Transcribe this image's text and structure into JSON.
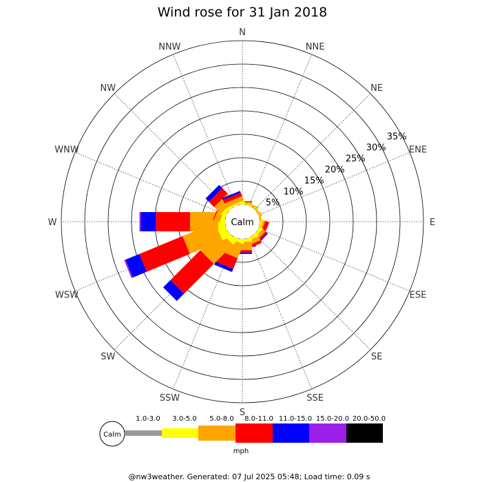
{
  "chart_data": {
    "type": "wind-rose",
    "title": "Wind rose for 31 Jan 2018",
    "directions": [
      "N",
      "NNE",
      "NE",
      "ENE",
      "E",
      "ESE",
      "SE",
      "SSE",
      "S",
      "SSW",
      "SW",
      "WSW",
      "W",
      "WNW",
      "NW",
      "NNW"
    ],
    "ring_labels": [
      "5%",
      "10%",
      "15%",
      "20%",
      "25%",
      "30%",
      "35%"
    ],
    "ring_values": [
      5,
      10,
      15,
      20,
      25,
      30,
      35
    ],
    "rmax": 35,
    "calm_label": "Calm",
    "unit_label": "mph",
    "speed_bins": [
      {
        "label": "1.0-3.0",
        "color": "#999999"
      },
      {
        "label": "3.0-5.0",
        "color": "#ffff00"
      },
      {
        "label": "5.0-8.0",
        "color": "#ffa500"
      },
      {
        "label": "8.0-11.0",
        "color": "#ff0000"
      },
      {
        "label": "11.0-15.0",
        "color": "#0000ff"
      },
      {
        "label": "15.0-20.0",
        "color": "#9b1fe8"
      },
      {
        "label": "20.0-50.0",
        "color": "#000000"
      }
    ],
    "series": [
      {
        "direction": "N",
        "values": [
          0,
          0.2,
          0.3,
          0.2,
          0,
          0,
          0
        ]
      },
      {
        "direction": "NNE",
        "values": [
          0,
          0.2,
          0.3,
          0,
          0,
          0,
          0
        ]
      },
      {
        "direction": "NE",
        "values": [
          0,
          0.1,
          0.2,
          0,
          0,
          0,
          0
        ]
      },
      {
        "direction": "ENE",
        "values": [
          0,
          0.1,
          0.2,
          0,
          0,
          0,
          0
        ]
      },
      {
        "direction": "E",
        "values": [
          0,
          0.1,
          0.2,
          0,
          0,
          0,
          0
        ]
      },
      {
        "direction": "ESE",
        "values": [
          0,
          0.3,
          0.5,
          0.9,
          0,
          0,
          0
        ]
      },
      {
        "direction": "SE",
        "values": [
          0,
          0.5,
          0.8,
          0.5,
          0.2,
          0,
          0
        ]
      },
      {
        "direction": "SSE",
        "values": [
          0,
          0.5,
          1.0,
          0.6,
          0,
          0,
          0
        ]
      },
      {
        "direction": "S",
        "values": [
          0,
          0.6,
          1.8,
          0.5,
          0.3,
          0,
          0
        ]
      },
      {
        "direction": "SSW",
        "values": [
          0,
          0.7,
          3.2,
          2.5,
          0.7,
          0,
          0
        ]
      },
      {
        "direction": "SW",
        "values": [
          0,
          1.2,
          5.8,
          9.0,
          2.2,
          0,
          0
        ]
      },
      {
        "direction": "WSW",
        "values": [
          0,
          1.8,
          7.5,
          10.0,
          3.2,
          0.3,
          0
        ]
      },
      {
        "direction": "W",
        "values": [
          0,
          1.5,
          6.0,
          7.3,
          3.2,
          0.3,
          0
        ]
      },
      {
        "direction": "WNW",
        "values": [
          0,
          0.8,
          1.3,
          0.2,
          0,
          0,
          0
        ]
      },
      {
        "direction": "NW",
        "values": [
          0,
          0.8,
          2.0,
          1.6,
          1.0,
          0,
          0
        ]
      },
      {
        "direction": "NNW",
        "values": [
          0,
          0.4,
          1.0,
          0.8,
          0.4,
          0,
          0
        ]
      }
    ],
    "grid": true
  },
  "footer": "@nw3weather. Generated: 07 Jul 2025 05:48; Load time: 0.09 s"
}
